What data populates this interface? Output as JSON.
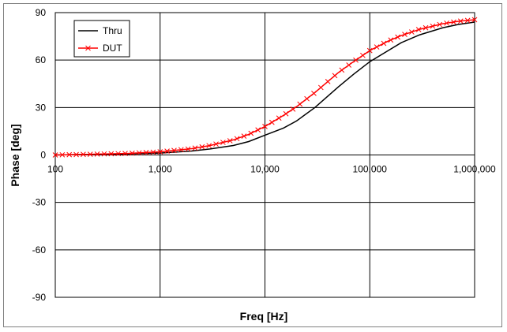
{
  "chart_data": {
    "type": "line",
    "title": "",
    "xlabel": "Freq [Hz]",
    "ylabel": "Phase [deg]",
    "x_scale": "log",
    "xlim": [
      100,
      1000000
    ],
    "ylim": [
      -90,
      90
    ],
    "grid": true,
    "legend_position": "top-left",
    "x_tick_values": [
      100,
      1000,
      10000,
      100000,
      1000000
    ],
    "x_tick_labels": [
      "100",
      "1,000",
      "10,000",
      "100,000",
      "1,000,000"
    ],
    "y_tick_values": [
      90,
      60,
      30,
      0,
      -30,
      -60,
      -90
    ],
    "y_tick_labels": [
      "90",
      "60",
      "30",
      "0",
      "-30",
      "-60",
      "-90"
    ],
    "series": [
      {
        "name": "Thru",
        "color": "#000000",
        "marker": "none",
        "x": [
          100,
          200,
          500,
          1000,
          2000,
          3000,
          5000,
          7000,
          10000,
          15000,
          20000,
          30000,
          50000,
          70000,
          100000,
          150000,
          200000,
          300000,
          500000,
          700000,
          1000000
        ],
        "y": [
          0,
          0.3,
          0.7,
          1.2,
          2.5,
          3.8,
          6,
          8.5,
          12.5,
          17,
          21.5,
          30,
          43,
          51,
          59,
          66,
          71,
          76,
          80.5,
          82.5,
          84
        ]
      },
      {
        "name": "DUT",
        "color": "#ff0000",
        "marker": "x",
        "x": [
          100,
          200,
          500,
          1000,
          2000,
          3000,
          5000,
          7000,
          10000,
          15000,
          20000,
          30000,
          50000,
          70000,
          100000,
          150000,
          200000,
          300000,
          500000,
          700000,
          1000000
        ],
        "y": [
          0,
          0.4,
          1,
          2,
          4,
          6,
          9.5,
          13,
          18,
          25,
          30.5,
          39.5,
          52,
          59,
          66,
          72,
          75.5,
          79.5,
          83,
          84.5,
          85.5
        ]
      }
    ]
  }
}
